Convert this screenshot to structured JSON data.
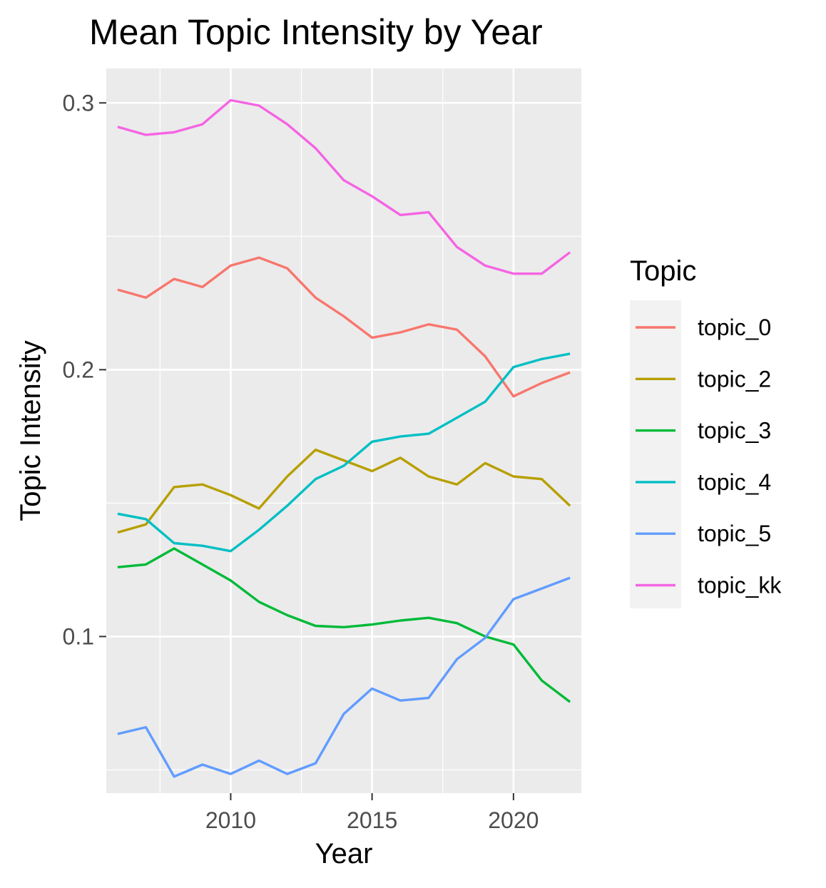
{
  "chart_data": {
    "type": "line",
    "title": "Mean Topic Intensity by Year",
    "xlabel": "Year",
    "ylabel": "Topic Intensity",
    "xlim": [
      2005.6,
      2022.4
    ],
    "ylim": [
      0.0413,
      0.3129
    ],
    "x_ticks": [
      2010,
      2015,
      2020
    ],
    "x_tick_labels": [
      "2010",
      "2015",
      "2020"
    ],
    "y_ticks": [
      0.1,
      0.2,
      0.3
    ],
    "y_tick_labels": [
      "0.1",
      "0.2",
      "0.3"
    ],
    "grid": true,
    "legend": {
      "title": "Topic",
      "position": "right"
    },
    "x": [
      2006,
      2007,
      2008,
      2009,
      2010,
      2011,
      2012,
      2013,
      2014,
      2015,
      2016,
      2017,
      2018,
      2019,
      2020,
      2021,
      2022
    ],
    "series": [
      {
        "name": "topic_0",
        "color": "#F8766D",
        "values": [
          0.23,
          0.227,
          0.234,
          0.231,
          0.239,
          0.242,
          0.238,
          0.227,
          0.22,
          0.212,
          0.214,
          0.217,
          0.215,
          0.205,
          0.19,
          0.195,
          0.199
        ]
      },
      {
        "name": "topic_2",
        "color": "#B79F00",
        "values": [
          0.139,
          0.142,
          0.156,
          0.157,
          0.153,
          0.148,
          0.16,
          0.17,
          0.166,
          0.162,
          0.167,
          0.16,
          0.157,
          0.165,
          0.16,
          0.159,
          0.149
        ]
      },
      {
        "name": "topic_3",
        "color": "#00BA38",
        "values": [
          0.126,
          0.127,
          0.133,
          0.127,
          0.121,
          0.113,
          0.108,
          0.104,
          0.1035,
          0.1045,
          0.106,
          0.107,
          0.105,
          0.1,
          0.097,
          0.0835,
          0.0755
        ]
      },
      {
        "name": "topic_4",
        "color": "#00BFC4",
        "values": [
          0.146,
          0.144,
          0.135,
          0.134,
          0.132,
          0.14,
          0.149,
          0.159,
          0.164,
          0.173,
          0.175,
          0.176,
          0.182,
          0.188,
          0.201,
          0.204,
          0.206
        ]
      },
      {
        "name": "topic_5",
        "color": "#619CFF",
        "values": [
          0.0635,
          0.066,
          0.0475,
          0.052,
          0.0485,
          0.0535,
          0.0485,
          0.0525,
          0.071,
          0.0805,
          0.076,
          0.077,
          0.0915,
          0.0995,
          0.114,
          0.118,
          0.122
        ]
      },
      {
        "name": "topic_kk",
        "color": "#F564E3",
        "values": [
          0.291,
          0.288,
          0.289,
          0.292,
          0.301,
          0.299,
          0.292,
          0.283,
          0.271,
          0.265,
          0.258,
          0.259,
          0.246,
          0.239,
          0.236,
          0.236,
          0.244
        ]
      }
    ]
  }
}
